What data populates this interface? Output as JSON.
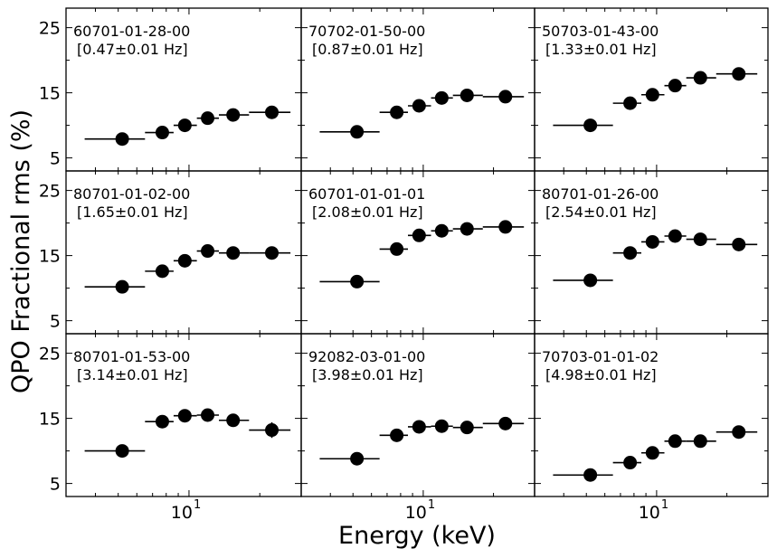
{
  "figure": {
    "ylabel": "QPO Fractional rms (%)",
    "xlabel": "Energy (keV)"
  },
  "chart_data": {
    "type": "scatter",
    "layout": "3x3 grid, shared axes",
    "x_scale": "log",
    "xlim": [
      3.0,
      30.0
    ],
    "ylim": [
      3.0,
      28.0
    ],
    "x_ticks": [
      {
        "value": 10,
        "label": "10",
        "exponent": "1"
      }
    ],
    "y_ticks": [
      {
        "value": 5,
        "label": "5"
      },
      {
        "value": 15,
        "label": "15"
      },
      {
        "value": 25,
        "label": "25"
      }
    ],
    "energy_bins": [
      [
        3.6,
        6.5
      ],
      [
        6.5,
        8.6
      ],
      [
        8.6,
        10.8
      ],
      [
        10.8,
        13.4
      ],
      [
        13.4,
        18.0
      ],
      [
        18.0,
        27.0
      ]
    ],
    "energy_centers": [
      5.2,
      7.7,
      9.6,
      12.0,
      15.4,
      22.5
    ],
    "panels": [
      {
        "obsid": "60701-01-28-00",
        "freq": "[0.47±0.01 Hz]",
        "rms": [
          7.9,
          8.9,
          10.0,
          11.1,
          11.6,
          12.0
        ],
        "err": [
          0.3,
          0.3,
          0.3,
          0.3,
          0.3,
          0.4
        ]
      },
      {
        "obsid": "70702-01-50-00",
        "freq": "[0.87±0.01 Hz]",
        "rms": [
          9.0,
          12.0,
          13.0,
          14.2,
          14.6,
          14.4
        ],
        "err": [
          0.3,
          0.3,
          0.3,
          0.3,
          0.3,
          0.4
        ]
      },
      {
        "obsid": "50703-01-43-00",
        "freq": "[1.33±0.01 Hz]",
        "rms": [
          10.0,
          13.4,
          14.7,
          16.1,
          17.3,
          17.9
        ],
        "err": [
          0.3,
          0.3,
          0.3,
          0.3,
          0.3,
          0.4
        ]
      },
      {
        "obsid": "80701-01-02-00",
        "freq": "[1.65±0.01 Hz]",
        "rms": [
          10.2,
          12.6,
          14.2,
          15.7,
          15.4,
          15.4
        ],
        "err": [
          0.3,
          0.3,
          0.3,
          0.3,
          0.3,
          0.4
        ]
      },
      {
        "obsid": "60701-01-01-01",
        "freq": "[2.08±0.01 Hz]",
        "rms": [
          11.0,
          16.0,
          18.1,
          18.8,
          19.1,
          19.4
        ],
        "err": [
          0.3,
          0.3,
          0.3,
          0.3,
          0.3,
          0.4
        ]
      },
      {
        "obsid": "80701-01-26-00",
        "freq": "[2.54±0.01 Hz]",
        "rms": [
          11.2,
          15.4,
          17.1,
          18.0,
          17.5,
          16.7
        ],
        "err": [
          0.3,
          0.3,
          0.3,
          0.3,
          0.3,
          0.4
        ]
      },
      {
        "obsid": "80701-01-53-00",
        "freq": "[3.14±0.01 Hz]",
        "rms": [
          10.0,
          14.5,
          15.4,
          15.5,
          14.7,
          13.2
        ],
        "err": [
          0.3,
          0.3,
          0.3,
          0.3,
          0.4,
          1.2
        ]
      },
      {
        "obsid": "92082-03-01-00",
        "freq": "[3.98±0.01 Hz]",
        "rms": [
          8.8,
          12.4,
          13.7,
          13.8,
          13.6,
          14.2
        ],
        "err": [
          0.3,
          0.3,
          0.3,
          0.3,
          0.3,
          0.4
        ]
      },
      {
        "obsid": "70703-01-01-02",
        "freq": "[4.98±0.01 Hz]",
        "rms": [
          6.3,
          8.2,
          9.7,
          11.5,
          11.5,
          12.9
        ],
        "err": [
          0.3,
          0.3,
          0.3,
          0.3,
          0.3,
          0.9
        ]
      }
    ]
  }
}
